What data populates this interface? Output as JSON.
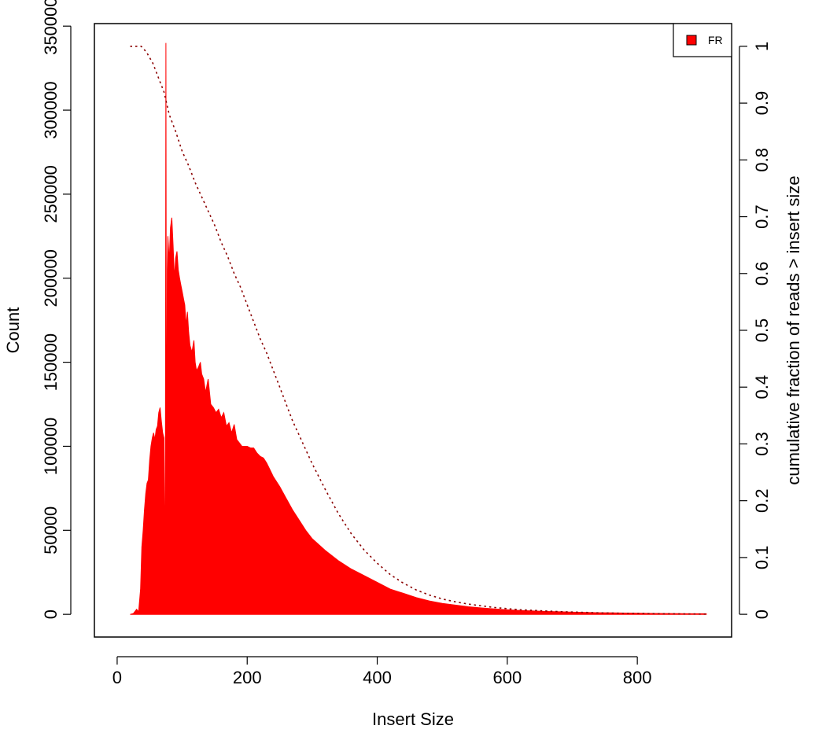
{
  "chart_data": {
    "type": "area",
    "xlabel": "Insert Size",
    "ylabel": "Count",
    "y2label": "cumulative fraction of reads > insert size",
    "xlim": [
      -35,
      945
    ],
    "ylim": [
      -13500,
      351500
    ],
    "y2lim": [
      -0.04,
      1.04
    ],
    "x_ticks": [
      0,
      200,
      400,
      600,
      800
    ],
    "y_ticks": [
      0,
      50000,
      100000,
      150000,
      200000,
      250000,
      300000,
      350000
    ],
    "y2_ticks": [
      0,
      0.1,
      0.2,
      0.3,
      0.4,
      0.5,
      0.6,
      0.7,
      0.8,
      0.9,
      1
    ],
    "grid": false,
    "legend_position": "top-right",
    "series": [
      {
        "name": "FR",
        "color": "#ff0000",
        "x": [
          20,
          25,
          30,
          33,
          36,
          38,
          40,
          42,
          44,
          46,
          48,
          50,
          52,
          54,
          56,
          58,
          60,
          62,
          64,
          66,
          68,
          70,
          72,
          74,
          75,
          76,
          77,
          78,
          80,
          82,
          84,
          86,
          88,
          90,
          92,
          94,
          96,
          98,
          100,
          102,
          104,
          106,
          108,
          110,
          112,
          115,
          118,
          120,
          122,
          125,
          128,
          130,
          133,
          136,
          140,
          144,
          148,
          152,
          156,
          160,
          164,
          168,
          172,
          176,
          180,
          184,
          188,
          192,
          196,
          200,
          205,
          210,
          215,
          220,
          225,
          230,
          235,
          240,
          250,
          260,
          270,
          280,
          290,
          300,
          320,
          340,
          360,
          380,
          400,
          420,
          440,
          460,
          480,
          500,
          520,
          540,
          560,
          580,
          600,
          620,
          640,
          660,
          680,
          700,
          720,
          740,
          760,
          780,
          800,
          820,
          840,
          860,
          880,
          906
        ],
        "values": [
          0,
          500,
          3000,
          1500,
          15000,
          40000,
          50000,
          62000,
          72000,
          78000,
          80000,
          92000,
          100000,
          105000,
          108000,
          104000,
          110000,
          112000,
          120000,
          123000,
          115000,
          108000,
          105000,
          20000,
          340000,
          30000,
          205000,
          225000,
          210000,
          230000,
          236000,
          220000,
          200000,
          212000,
          216000,
          205000,
          200000,
          196000,
          192000,
          188000,
          184000,
          172000,
          180000,
          168000,
          160000,
          156000,
          163000,
          150000,
          145000,
          147000,
          150000,
          143000,
          140000,
          132000,
          140000,
          125000,
          123000,
          120000,
          122000,
          117000,
          120000,
          112000,
          114000,
          108000,
          113000,
          104000,
          102000,
          100000,
          100000,
          100000,
          99000,
          99000,
          96000,
          94000,
          93000,
          90000,
          86000,
          82000,
          76000,
          69000,
          62000,
          56000,
          50000,
          45000,
          38000,
          32000,
          27000,
          23000,
          19000,
          15000,
          12500,
          10000,
          8000,
          6500,
          5500,
          4500,
          3800,
          3200,
          2700,
          2300,
          2000,
          1700,
          1500,
          1300,
          1100,
          950,
          850,
          750,
          650,
          560,
          480,
          420,
          370,
          330
        ]
      }
    ],
    "cumulative": {
      "color": "#8b0000",
      "style": "dotted",
      "x": [
        20,
        30,
        37,
        45,
        55,
        65,
        72,
        80,
        90,
        100,
        110,
        120,
        130,
        140,
        150,
        160,
        170,
        180,
        190,
        200,
        210,
        220,
        230,
        240,
        250,
        260,
        270,
        280,
        290,
        300,
        320,
        340,
        360,
        380,
        400,
        420,
        440,
        460,
        480,
        500,
        520,
        540,
        560,
        580,
        600,
        620,
        640,
        660,
        680,
        700,
        720,
        740,
        760,
        780,
        800,
        820,
        840,
        860,
        880,
        906
      ],
      "values": [
        1.0,
        1.0,
        1.0,
        0.99,
        0.97,
        0.94,
        0.92,
        0.88,
        0.85,
        0.815,
        0.79,
        0.76,
        0.735,
        0.71,
        0.685,
        0.655,
        0.63,
        0.6,
        0.575,
        0.545,
        0.515,
        0.485,
        0.46,
        0.43,
        0.4,
        0.37,
        0.34,
        0.315,
        0.29,
        0.265,
        0.22,
        0.178,
        0.142,
        0.113,
        0.09,
        0.07,
        0.055,
        0.043,
        0.034,
        0.027,
        0.022,
        0.018,
        0.015,
        0.012,
        0.01,
        0.008,
        0.007,
        0.0058,
        0.0048,
        0.004,
        0.0033,
        0.0027,
        0.0022,
        0.0018,
        0.0015,
        0.0012,
        0.001,
        0.0008,
        0.0006,
        0.0005
      ]
    }
  }
}
